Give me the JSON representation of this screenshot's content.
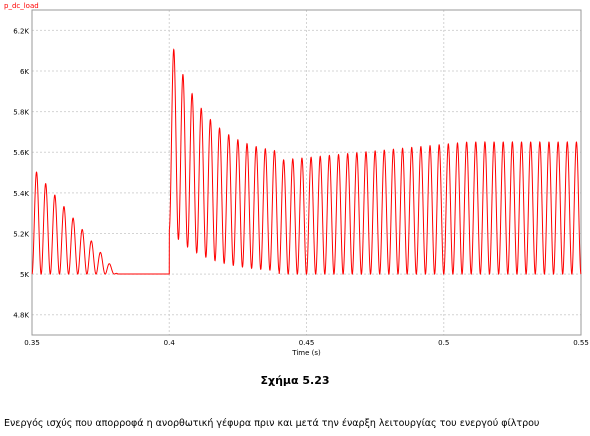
{
  "chart_data": {
    "type": "line",
    "series": [
      {
        "name": "p_dc_load",
        "color": "#ff0000",
        "segments": [
          {
            "t_start": 0.35,
            "t_end": 0.4,
            "base": 5000,
            "amp_end": 5000,
            "amp_start": 5530,
            "peak": 5530,
            "settle": 0
          },
          {
            "t_start": 0.4,
            "t_end": 0.44,
            "base": 5100,
            "amp_start": 6180,
            "amp_end": 5580,
            "decay": true
          },
          {
            "t_start": 0.44,
            "t_end": 0.55,
            "base": 5000,
            "amp_start": 5560,
            "amp_end": 5650
          }
        ]
      }
    ],
    "xlabel": "Time (s)",
    "xlim": [
      0.35,
      0.55
    ],
    "ylim": [
      4700,
      6300
    ],
    "xticks": [
      {
        "value": 0.35,
        "label": "0.35"
      },
      {
        "value": 0.4,
        "label": "0.4"
      },
      {
        "value": 0.45,
        "label": "0.45"
      },
      {
        "value": 0.5,
        "label": "0.5"
      },
      {
        "value": 0.55,
        "label": "0.55"
      }
    ],
    "yticks": [
      {
        "value": 4800,
        "label": "4.8K"
      },
      {
        "value": 5000,
        "label": "5K"
      },
      {
        "value": 5200,
        "label": "5.2K"
      },
      {
        "value": 5400,
        "label": "5.4K"
      },
      {
        "value": 5600,
        "label": "5.6K"
      },
      {
        "value": 5800,
        "label": "5.8K"
      },
      {
        "value": 6000,
        "label": "6K"
      },
      {
        "value": 6200,
        "label": "6.2K"
      }
    ],
    "ripple_frequency_hz": 300,
    "grid": true,
    "legend": "top-left"
  },
  "caption": "Σχήμα 5.23",
  "description": "Ενεργός ισχύς που απορροφά η ανορθωτική γέφυρα πριν και μετά την έναρξη λειτουργίας του ενεργού φίλτρου"
}
